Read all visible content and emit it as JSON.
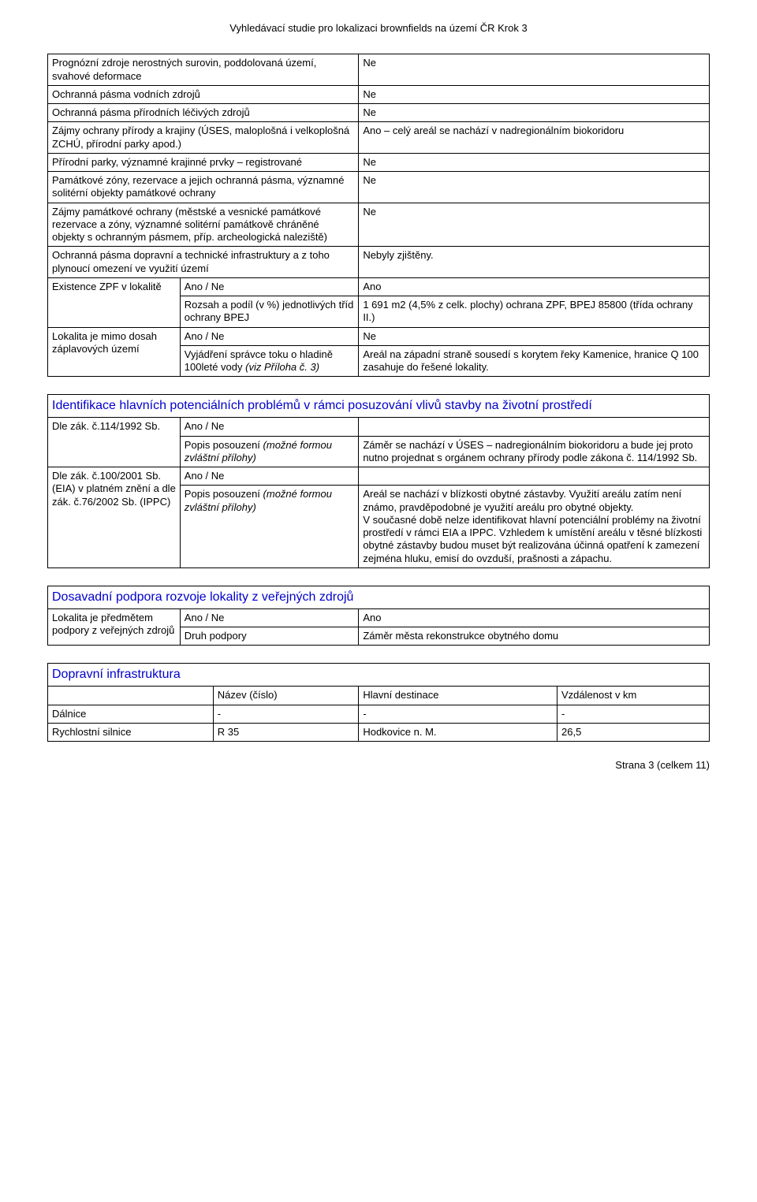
{
  "header": {
    "title": "Vyhledávací studie pro lokalizaci brownfields na území ČR  Krok 3"
  },
  "table1": {
    "rows": [
      {
        "label": "Prognózní zdroje nerostných surovin, poddolovaná území, svahové deformace",
        "value": "Ne"
      },
      {
        "label": "Ochranná pásma vodních zdrojů",
        "value": "Ne"
      },
      {
        "label": "Ochranná pásma přírodních léčivých zdrojů",
        "value": "Ne"
      },
      {
        "label": "Zájmy ochrany přírody a krajiny (ÚSES, maloplošná i velkoplošná ZCHÚ, přírodní parky apod.)",
        "value": "Ano – celý areál se nachází v nadregionálním biokoridoru"
      },
      {
        "label": "Přírodní parky, významné krajinné prvky – registrované",
        "value": "Ne"
      },
      {
        "label": "Památkové zóny, rezervace a jejich ochranná pásma, významné solitérní objekty památkové ochrany",
        "value": "Ne"
      },
      {
        "label": "Zájmy památkové ochrany (městské a vesnické památkové rezervace a zóny, významné solitérní památkově chráněné objekty s ochranným pásmem, příp. archeologická naleziště)",
        "value": "Ne"
      },
      {
        "label": "Ochranná pásma dopravní a technické infrastruktury a z toho plynoucí omezení ve využití území",
        "value": "Nebyly zjištěny."
      }
    ],
    "zpf": {
      "label": "Existence ZPF v lokalitě",
      "r1k": "Ano / Ne",
      "r1v": "Ano",
      "r2k": "Rozsah a podíl (v %) jednotlivých tříd ochrany BPEJ",
      "r2v": "1 691 m2 (4,5% z celk. plochy) ochrana ZPF, BPEJ 85800 (třída ochrany II.)"
    },
    "flood": {
      "label": "Lokalita je mimo dosah záplavových území",
      "r1k": "Ano / Ne",
      "r1v": "Ne",
      "r2k": "Vyjádření správce toku o hladině 100leté vody (viz Příloha č. 3)",
      "r2v": "Areál na západní  straně sousedí s korytem řeky Kamenice, hranice Q 100 zasahuje do řešené lokality."
    }
  },
  "ident": {
    "title": "Identifikace hlavních potenciálních problémů v rámci posuzování vlivů stavby na životní prostředí",
    "g1": {
      "label": "Dle zák. č.114/1992 Sb.",
      "r1k": "Ano / Ne",
      "r1v": "",
      "r2k": "Popis posouzení (možné formou zvláštní přílohy)",
      "r2v": "Záměr se nachází v ÚSES – nadregionálním biokoridoru a bude jej proto nutno projednat s orgánem ochrany přírody podle zákona č. 114/1992 Sb."
    },
    "g2": {
      "label": "Dle zák. č.100/2001 Sb. (EIA) v platném znění a dle zák. č.76/2002 Sb. (IPPC)",
      "r1k": "Ano / Ne",
      "r1v": "",
      "r2k": "Popis posouzení (možné formou zvláštní přílohy)",
      "r2v": "Areál se nachází v blízkosti obytné zástavby. Využití areálu zatím není známo, pravděpodobné je využití areálu pro obytné objekty.\nV současné době nelze identifikovat hlavní potenciální problémy na životní prostředí v rámci EIA a IPPC. Vzhledem k umístění areálu v těsné blízkosti obytné zástavby budou muset být realizována účinná opatření k zamezení zejména hluku, emisí do ovzduší, prašnosti a zápachu."
    }
  },
  "support": {
    "title": "Dosavadní podpora rozvoje lokality z veřejných zdrojů",
    "label": "Lokalita je předmětem podpory z veřejných zdrojů",
    "r1k": "Ano / Ne",
    "r1v": "Ano",
    "r2k": "Druh podpory",
    "r2v": "Záměr města rekonstrukce obytného domu"
  },
  "transport": {
    "title": "Dopravní infrastruktura",
    "headers": [
      "",
      "Název (číslo)",
      "Hlavní destinace",
      "Vzdálenost v km"
    ],
    "rows": [
      {
        "c0": "Dálnice",
        "c1": "-",
        "c2": "-",
        "c3": "-"
      },
      {
        "c0": "Rychlostní silnice",
        "c1": "R 35",
        "c2": "Hodkovice n. M.",
        "c3": "26,5"
      }
    ]
  },
  "footer": {
    "text": "Strana 3 (celkem 11)"
  }
}
